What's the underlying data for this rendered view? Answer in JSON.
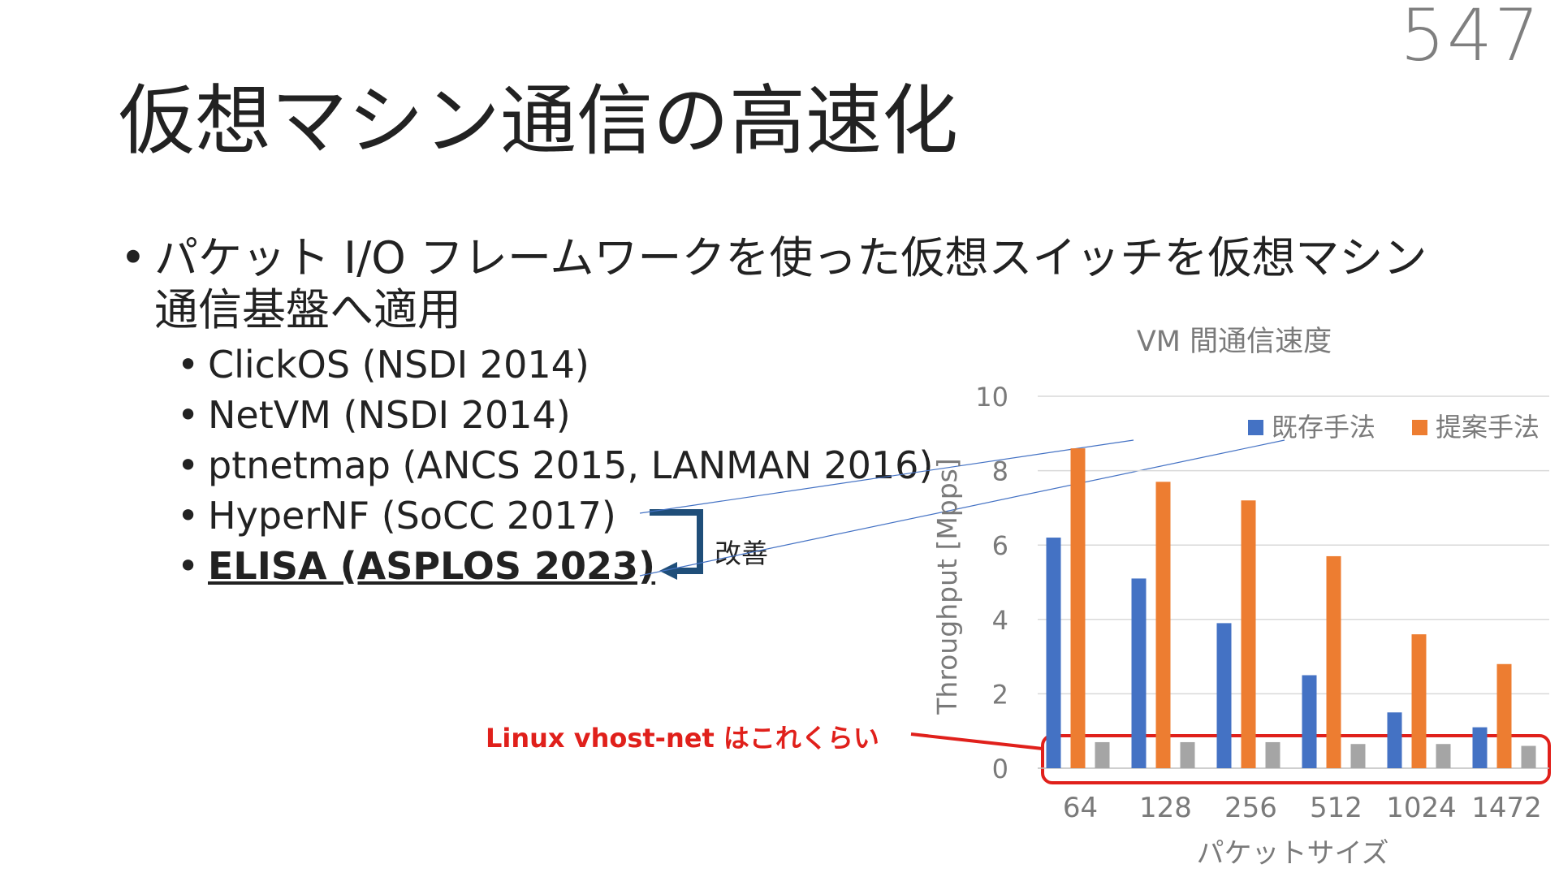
{
  "page_number": "547",
  "title": "仮想マシン通信の高速化",
  "bullet": "パケット I/O フレームワークを使った仮想スイッチを仮想マシン通信基盤へ適用",
  "sub_items": [
    {
      "text": "ClickOS (NSDI 2014)",
      "emphasis": false
    },
    {
      "text": "NetVM (NSDI 2014)",
      "emphasis": false
    },
    {
      "text": "ptnetmap (ANCS 2015, LANMAN 2016)",
      "emphasis": false
    },
    {
      "text": "HyperNF (SoCC 2017)",
      "emphasis": false
    },
    {
      "text": "ELISA (ASPLOS 2023)",
      "emphasis": true
    }
  ],
  "improve_label": "改善",
  "callout_label": "Linux vhost-net はこれくらい",
  "colors": {
    "existing": "#4472c4",
    "proposed": "#ed7d31",
    "vhost": "#a5a5a5",
    "callout": "#e0201b",
    "arrow": "#1f4e79"
  },
  "chart_data": {
    "type": "bar",
    "title": "VM 間通信速度",
    "xlabel": "パケットサイズ",
    "ylabel": "Throughput [Mpps]",
    "categories": [
      "64",
      "128",
      "256",
      "512",
      "1024",
      "1472"
    ],
    "ylim": [
      0,
      10
    ],
    "yticks": [
      "0",
      "2",
      "4",
      "6",
      "8",
      "10"
    ],
    "grid": true,
    "legend_position": "top-right",
    "series": [
      {
        "name": "既存手法",
        "color": "#4472c4",
        "values": [
          6.2,
          5.1,
          3.9,
          2.5,
          1.5,
          1.1
        ]
      },
      {
        "name": "提案手法",
        "color": "#ed7d31",
        "values": [
          8.6,
          7.7,
          7.2,
          5.7,
          3.6,
          2.8
        ]
      },
      {
        "name": "",
        "color": "#a5a5a5",
        "values": [
          0.7,
          0.7,
          0.7,
          0.65,
          0.65,
          0.6
        ]
      }
    ]
  }
}
